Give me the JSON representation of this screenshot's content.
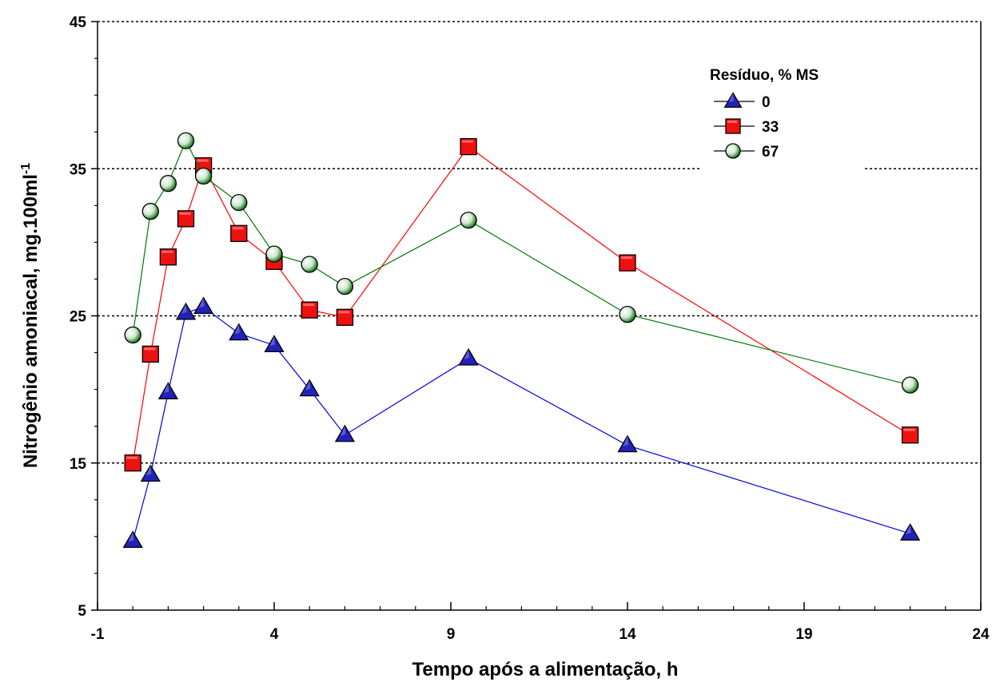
{
  "chart_data": {
    "type": "line",
    "title": "",
    "xlabel": "Tempo após a alimentação, h",
    "ylabel": "Nitrogênio amoniacal, mg.100ml",
    "ylabel_superscript": "-1",
    "xlim": [
      -1,
      24
    ],
    "ylim": [
      5,
      45
    ],
    "x_ticks": [
      -1,
      4,
      9,
      14,
      19,
      24
    ],
    "y_ticks": [
      5,
      15,
      25,
      35,
      45
    ],
    "x_tick_labels": [
      "-1",
      "4",
      "9",
      "14",
      "19",
      "24"
    ],
    "y_tick_labels": [
      "5",
      "15",
      "25",
      "35",
      "45"
    ],
    "grid": "horizontal dotted at 15, 25, 35",
    "legend": {
      "title": "Resíduo, % MS",
      "placement": "top-right",
      "labels": [
        "0",
        "33",
        "67"
      ]
    },
    "series": [
      {
        "name": "0",
        "marker": "triangle",
        "color": "#0000e0",
        "marker_color": "#2222bb",
        "x": [
          0,
          0.5,
          1,
          1.5,
          2,
          3,
          4,
          5,
          6,
          9.5,
          14,
          22
        ],
        "y": [
          9.7,
          14.2,
          19.8,
          25.2,
          25.6,
          23.8,
          23.0,
          20.0,
          16.9,
          22.1,
          16.2,
          10.2
        ]
      },
      {
        "name": "33",
        "marker": "square",
        "color": "#ff0000",
        "marker_color": "#ee1111",
        "x": [
          0,
          0.5,
          1,
          1.5,
          2,
          3,
          4,
          5,
          6,
          9.5,
          14,
          22
        ],
        "y": [
          15.0,
          22.4,
          29.0,
          31.6,
          35.2,
          30.6,
          28.7,
          25.4,
          24.9,
          36.5,
          28.6,
          16.9
        ]
      },
      {
        "name": "67",
        "marker": "circle",
        "color": "#007700",
        "marker_color": "#2a8a2a",
        "x": [
          0,
          0.5,
          1,
          1.5,
          2,
          3,
          4,
          5,
          6,
          9.5,
          14,
          22
        ],
        "y": [
          23.7,
          32.1,
          34.0,
          36.9,
          34.5,
          32.7,
          29.2,
          28.5,
          27.0,
          31.5,
          25.1,
          20.3
        ]
      }
    ]
  }
}
